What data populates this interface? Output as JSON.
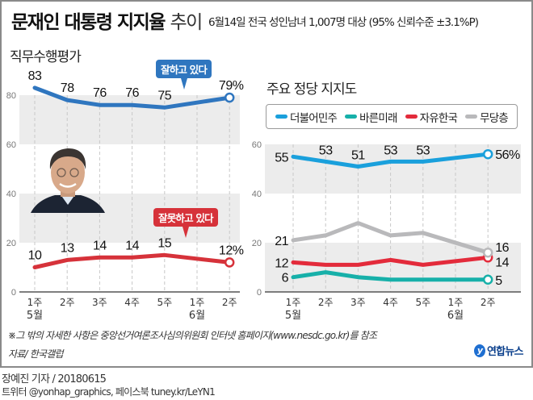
{
  "title": {
    "bold": "문재인 대통령 지지율",
    "light": "추이"
  },
  "subtitle": "6월14일 전국 성인남녀 1,007명 대상 (95% 신뢰수준 ±3.1%P)",
  "note": "※그 밖의 자세한 사항은 중앙선거여론조사심의위원회 인터넷 홈페이지(www.nesdc.go.kr)를 참조",
  "source": "자료/ 한국갤럽",
  "logo": {
    "mark": "y",
    "text": "연합뉴스"
  },
  "byline": "장예진 기자 / 20180615",
  "social": "트위터 @yonhap_graphics, 페이스북 tuney.kr/LeYN1",
  "colors": {
    "blue": "#2f76bf",
    "red": "#d6323a",
    "minjoo": "#1aa0dc",
    "bareun": "#17b0a9",
    "jayu": "#e32b3b",
    "none": "#b9b9bb",
    "band": "#ececec"
  },
  "chart_data": [
    {
      "type": "line",
      "title": "직무수행평가",
      "categories": [
        "1주",
        "2주",
        "3주",
        "4주",
        "5주",
        "1주",
        "2주"
      ],
      "month_labels": [
        {
          "index": 0,
          "label": "5월"
        },
        {
          "index": 5,
          "label": "6월"
        }
      ],
      "ylim": [
        0,
        80
      ],
      "yticks": [
        0,
        20,
        40,
        60,
        80
      ],
      "grid": "alternating bands",
      "series": [
        {
          "name": "잘하고 있다",
          "color": "#2f76bf",
          "values": [
            83,
            78,
            76,
            76,
            75,
            null,
            79
          ],
          "labels": [
            "83",
            "78",
            "76",
            "76",
            "75",
            null,
            "79%"
          ]
        },
        {
          "name": "잘못하고 있다",
          "color": "#d6323a",
          "values": [
            10,
            13,
            14,
            14,
            15,
            null,
            12
          ],
          "labels": [
            "10",
            "13",
            "14",
            "14",
            "15",
            null,
            "12%"
          ]
        }
      ],
      "callouts": [
        {
          "text": "잘하고 있다",
          "series": 0
        },
        {
          "text": "잘못하고 있다",
          "series": 1
        }
      ]
    },
    {
      "type": "line",
      "title": "주요 정당 지지도",
      "categories": [
        "1주",
        "2주",
        "3주",
        "4주",
        "5주",
        "1주",
        "2주"
      ],
      "month_labels": [
        {
          "index": 0,
          "label": "5월"
        },
        {
          "index": 5,
          "label": "6월"
        }
      ],
      "ylim": [
        0,
        60
      ],
      "yticks": [
        0,
        20,
        40,
        60
      ],
      "legend_position": "top",
      "series": [
        {
          "name": "더불어민주",
          "color": "#1aa0dc",
          "values": [
            55,
            53,
            51,
            53,
            53,
            null,
            56
          ],
          "labels": [
            "55",
            "53",
            "51",
            "53",
            "53",
            null,
            "56%"
          ]
        },
        {
          "name": "바른미래",
          "color": "#17b0a9",
          "values": [
            6,
            8,
            6,
            5,
            5,
            null,
            5
          ],
          "labels": [
            "6",
            null,
            null,
            null,
            null,
            null,
            "5"
          ]
        },
        {
          "name": "자유한국",
          "color": "#e32b3b",
          "values": [
            12,
            11,
            11,
            13,
            11,
            null,
            14
          ],
          "labels": [
            "12",
            null,
            null,
            null,
            null,
            null,
            "14"
          ]
        },
        {
          "name": "무당층",
          "color": "#b9b9bb",
          "values": [
            21,
            23,
            28,
            23,
            24,
            null,
            16
          ],
          "labels": [
            "21",
            null,
            null,
            null,
            null,
            null,
            "16"
          ]
        }
      ]
    }
  ]
}
